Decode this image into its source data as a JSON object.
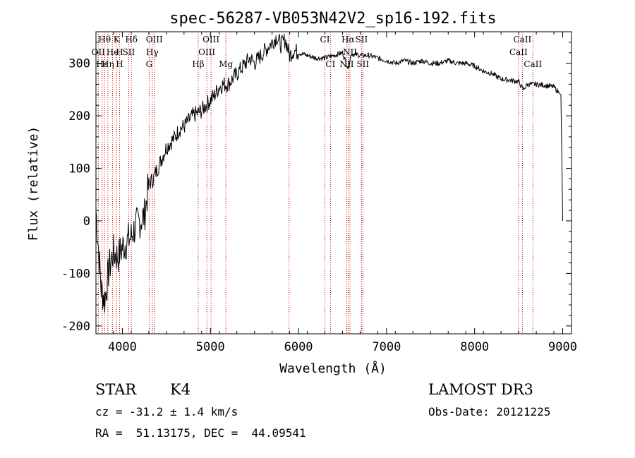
{
  "chart_data": {
    "type": "line",
    "title": "spec-56287-VB053N42V2_sp16-192.fits",
    "xlabel": "Wavelength (Å)",
    "ylabel": "Flux (relative)",
    "xlim": [
      3700,
      9100
    ],
    "ylim": [
      -215,
      360
    ],
    "xticks": [
      4000,
      5000,
      6000,
      7000,
      8000,
      9000
    ],
    "yticks": [
      -200,
      -100,
      0,
      100,
      200,
      300
    ],
    "series": [
      {
        "name": "spectrum",
        "x": [
          3700,
          3760,
          3800,
          3850,
          3900,
          3950,
          4000,
          4050,
          4100,
          4150,
          4200,
          4250,
          4300,
          4350,
          4400,
          4450,
          4500,
          4550,
          4600,
          4650,
          4700,
          4750,
          4800,
          4850,
          4900,
          4950,
          5000,
          5050,
          5100,
          5150,
          5200,
          5250,
          5300,
          5350,
          5400,
          5450,
          5500,
          5550,
          5600,
          5650,
          5700,
          5750,
          5800,
          5850,
          5900,
          5950,
          6000,
          6100,
          6200,
          6300,
          6400,
          6500,
          6563,
          6600,
          6700,
          6800,
          6900,
          7000,
          7100,
          7200,
          7300,
          7400,
          7500,
          7600,
          7700,
          7800,
          7900,
          8000,
          8100,
          8200,
          8300,
          8400,
          8500,
          8550,
          8600,
          8700,
          8800,
          8900,
          8950,
          8980,
          8990,
          9000
        ],
        "y": [
          20,
          -130,
          -150,
          -90,
          -60,
          -70,
          -50,
          -40,
          -30,
          -10,
          0,
          10,
          70,
          80,
          100,
          120,
          140,
          150,
          160,
          175,
          180,
          190,
          200,
          205,
          210,
          220,
          230,
          240,
          255,
          260,
          260,
          270,
          280,
          290,
          300,
          310,
          300,
          310,
          320,
          330,
          340,
          350,
          335,
          345,
          315,
          325,
          320,
          315,
          310,
          310,
          315,
          320,
          290,
          318,
          315,
          315,
          310,
          305,
          300,
          305,
          300,
          305,
          300,
          300,
          305,
          300,
          300,
          295,
          285,
          280,
          270,
          268,
          265,
          250,
          260,
          260,
          258,
          255,
          245,
          240,
          120,
          0
        ]
      }
    ],
    "spectral_lines": [
      {
        "label": "Hθ",
        "wavelength": 3798,
        "row": 1
      },
      {
        "label": "K",
        "wavelength": 3934,
        "row": 1
      },
      {
        "label": "Hδ",
        "wavelength": 4102,
        "row": 1
      },
      {
        "label": "OIII",
        "wavelength": 4363,
        "row": 1
      },
      {
        "label": "OIII",
        "wavelength": 5007,
        "row": 1
      },
      {
        "label": "CI",
        "wavelength": 6300,
        "row": 1
      },
      {
        "label": "Hα",
        "wavelength": 6563,
        "row": 1
      },
      {
        "label": "SII",
        "wavelength": 6716,
        "row": 1
      },
      {
        "label": "CaII",
        "wavelength": 8542,
        "row": 1
      },
      {
        "label": "OII",
        "wavelength": 3727,
        "row": 2
      },
      {
        "label": "He",
        "wavelength": 3889,
        "row": 2
      },
      {
        "label": "H",
        "wavelength": 3968,
        "row": 2
      },
      {
        "label": "SII",
        "wavelength": 4072,
        "row": 2
      },
      {
        "label": "Hγ",
        "wavelength": 4340,
        "row": 2
      },
      {
        "label": "OIII",
        "wavelength": 4959,
        "row": 2
      },
      {
        "label": "NII",
        "wavelength": 6584,
        "row": 2
      },
      {
        "label": "CaII",
        "wavelength": 8498,
        "row": 2
      },
      {
        "label": "Hε",
        "wavelength": 3770,
        "row": 3
      },
      {
        "label": "Hη",
        "wavelength": 3835,
        "row": 3
      },
      {
        "label": "H",
        "wavelength": 3968,
        "row": 3
      },
      {
        "label": "G",
        "wavelength": 4304,
        "row": 3
      },
      {
        "label": "Hβ",
        "wavelength": 4861,
        "row": 3
      },
      {
        "label": "Mg",
        "wavelength": 5175,
        "row": 3
      },
      {
        "label": "CI",
        "wavelength": 6363,
        "row": 3
      },
      {
        "label": "NII",
        "wavelength": 6548,
        "row": 3
      },
      {
        "label": "SII",
        "wavelength": 6731,
        "row": 3
      },
      {
        "label": "CaII",
        "wavelength": 8662,
        "row": 3
      }
    ],
    "line_marker_wavelengths": [
      3727,
      3770,
      3798,
      3835,
      3889,
      3934,
      3968,
      4072,
      4102,
      4304,
      4340,
      4363,
      4861,
      4959,
      5007,
      5175,
      5893,
      6300,
      6363,
      6548,
      6563,
      6584,
      6716,
      6731,
      8498,
      8542,
      8662
    ]
  },
  "info": {
    "class": "STAR",
    "subclass": "K4",
    "survey": "LAMOST DR3",
    "redshift": "cz = -31.2 ± 1.4 km/s",
    "obs_date": "Obs-Date: 20121225",
    "coords": "RA =  51.13175, DEC =  44.09541"
  },
  "colors": {
    "axes": "#000000",
    "line_marker": "#cc0000",
    "spectrum": "#000000"
  }
}
